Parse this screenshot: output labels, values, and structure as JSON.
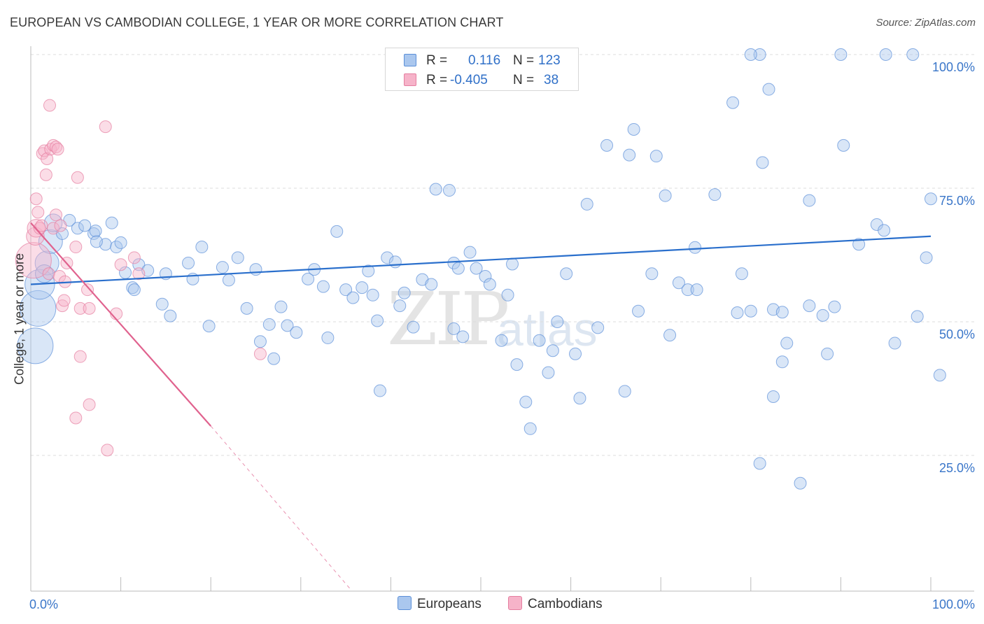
{
  "title": "EUROPEAN VS CAMBODIAN COLLEGE, 1 YEAR OR MORE CORRELATION CHART",
  "source": "Source: ZipAtlas.com",
  "watermark": {
    "zip": "ZIP",
    "atlas": "atlas"
  },
  "colors": {
    "european_fill": "#aac7ee",
    "european_stroke": "#5b8fd8",
    "european_line": "#2a6fcc",
    "cambodian_fill": "#f6b3c9",
    "cambodian_stroke": "#e57ea0",
    "cambodian_line": "#e0628e",
    "grid": "#dddddd",
    "axis_text": "#3a76c9"
  },
  "legend": {
    "rows": [
      {
        "r_label": "R =",
        "r_value": "0.116",
        "n_label": "N =",
        "n_value": "123"
      },
      {
        "r_label": "R =",
        "r_value": "-0.405",
        "n_label": "N =",
        "n_value": "38"
      }
    ],
    "series_names": [
      "Europeans",
      "Cambodians"
    ]
  },
  "chart_data": {
    "type": "scatter",
    "title": "EUROPEAN VS CAMBODIAN COLLEGE, 1 YEAR OR MORE CORRELATION CHART",
    "xlabel": "",
    "ylabel": "College, 1 year or more",
    "xlim": [
      0,
      100
    ],
    "ylim": [
      0,
      100
    ],
    "x_tick_labels": [
      "0.0%",
      "100.0%"
    ],
    "y_tick_labels": [
      "25.0%",
      "50.0%",
      "75.0%",
      "100.0%"
    ],
    "y_tick_values": [
      25,
      50,
      75,
      100
    ],
    "grid": true,
    "series": [
      {
        "name": "Europeans",
        "r": 0.116,
        "n": 123,
        "trend": {
          "x": [
            0,
            100
          ],
          "y": [
            57.0,
            66.0
          ],
          "dashed_extension": false
        },
        "points": [
          [
            0.5,
            45.5,
            3
          ],
          [
            0.8,
            52.5,
            3
          ],
          [
            1.0,
            57.0,
            2.5
          ],
          [
            1.8,
            61.0,
            2
          ],
          [
            2.2,
            65.0,
            2
          ],
          [
            1.5,
            59.0,
            1.5
          ],
          [
            2.5,
            68.5,
            1.5
          ],
          [
            3.5,
            66.5,
            1
          ],
          [
            4.3,
            69.0,
            1
          ],
          [
            5.2,
            67.5,
            1
          ],
          [
            6.0,
            68.0,
            1
          ],
          [
            7.0,
            66.5,
            1
          ],
          [
            7.2,
            67.0,
            1
          ],
          [
            8.3,
            64.5,
            1
          ],
          [
            9.0,
            68.5,
            1
          ],
          [
            9.5,
            64.0,
            1
          ],
          [
            7.3,
            65.0,
            1
          ],
          [
            10.0,
            64.8,
            1
          ],
          [
            10.5,
            59.2,
            1
          ],
          [
            11.3,
            56.4,
            1
          ],
          [
            11.5,
            56.0,
            1
          ],
          [
            12.0,
            60.7,
            1
          ],
          [
            13.0,
            59.6,
            1
          ],
          [
            14.6,
            53.3,
            1
          ],
          [
            15.0,
            59.0,
            1
          ],
          [
            15.5,
            51.1,
            1
          ],
          [
            17.5,
            61.0,
            1
          ],
          [
            18.0,
            58.0,
            1
          ],
          [
            19.0,
            64.0,
            1
          ],
          [
            19.8,
            49.2,
            1
          ],
          [
            21.3,
            60.2,
            1
          ],
          [
            22.0,
            57.8,
            1
          ],
          [
            23.0,
            62.0,
            1
          ],
          [
            24.0,
            52.5,
            1
          ],
          [
            25.0,
            59.8,
            1
          ],
          [
            25.5,
            46.3,
            1
          ],
          [
            26.5,
            49.5,
            1
          ],
          [
            27.0,
            43.1,
            1
          ],
          [
            27.8,
            52.8,
            1
          ],
          [
            28.5,
            49.3,
            1
          ],
          [
            29.5,
            48.0,
            1
          ],
          [
            30.8,
            58.0,
            1
          ],
          [
            31.5,
            59.8,
            1
          ],
          [
            32.5,
            56.6,
            1
          ],
          [
            33.0,
            47.0,
            1
          ],
          [
            34.0,
            66.9,
            1
          ],
          [
            35.0,
            56.0,
            1
          ],
          [
            35.8,
            54.5,
            1
          ],
          [
            36.8,
            56.4,
            1
          ],
          [
            37.5,
            59.5,
            1
          ],
          [
            38.0,
            55.0,
            1
          ],
          [
            38.5,
            50.2,
            1
          ],
          [
            38.8,
            37.1,
            1
          ],
          [
            39.6,
            62.0,
            1
          ],
          [
            40.5,
            61.2,
            1
          ],
          [
            41.0,
            53.0,
            1
          ],
          [
            41.5,
            55.4,
            1
          ],
          [
            42.5,
            49.0,
            1
          ],
          [
            43.5,
            57.9,
            1
          ],
          [
            44.5,
            57.0,
            1
          ],
          [
            45.0,
            74.8,
            1
          ],
          [
            46.5,
            74.6,
            1
          ],
          [
            47.0,
            61.0,
            1
          ],
          [
            47.5,
            60.0,
            1
          ],
          [
            47.0,
            48.7,
            1
          ],
          [
            48.0,
            47.2,
            1
          ],
          [
            48.8,
            63.0,
            1
          ],
          [
            49.5,
            60.0,
            1
          ],
          [
            50.5,
            58.5,
            1
          ],
          [
            51.0,
            57.0,
            1
          ],
          [
            52.3,
            46.5,
            1
          ],
          [
            53.0,
            55.0,
            1
          ],
          [
            53.5,
            60.8,
            1
          ],
          [
            54.0,
            42.0,
            1
          ],
          [
            55.0,
            35.0,
            1
          ],
          [
            55.5,
            30.0,
            1
          ],
          [
            56.5,
            46.5,
            1
          ],
          [
            57.5,
            40.5,
            1
          ],
          [
            58.0,
            44.6,
            1
          ],
          [
            58.5,
            50.0,
            1
          ],
          [
            59.5,
            59.0,
            1
          ],
          [
            60.5,
            44.0,
            1
          ],
          [
            61.0,
            35.7,
            1
          ],
          [
            61.8,
            72.0,
            1
          ],
          [
            63.0,
            48.9,
            1
          ],
          [
            64.0,
            83.0,
            1
          ],
          [
            66.0,
            37.0,
            1
          ],
          [
            66.5,
            81.2,
            1
          ],
          [
            67.0,
            86.0,
            1
          ],
          [
            67.5,
            52.0,
            1
          ],
          [
            69.0,
            59.0,
            1
          ],
          [
            69.5,
            81.0,
            1
          ],
          [
            70.5,
            73.6,
            1
          ],
          [
            71.0,
            47.5,
            1
          ],
          [
            72.0,
            57.3,
            1
          ],
          [
            73.0,
            56.0,
            1
          ],
          [
            73.8,
            63.9,
            1
          ],
          [
            74.0,
            56.0,
            1
          ],
          [
            76.0,
            73.8,
            1
          ],
          [
            78.0,
            91.0,
            1
          ],
          [
            78.5,
            51.7,
            1
          ],
          [
            79.0,
            59.0,
            1
          ],
          [
            80.0,
            52.0,
            1
          ],
          [
            81.0,
            23.5,
            1
          ],
          [
            81.3,
            79.8,
            1
          ],
          [
            82.0,
            93.5,
            1
          ],
          [
            82.5,
            52.3,
            1
          ],
          [
            83.5,
            51.8,
            1
          ],
          [
            84.0,
            46.0,
            1
          ],
          [
            85.5,
            19.8,
            1
          ],
          [
            86.5,
            53.0,
            1
          ],
          [
            88.0,
            51.2,
            1
          ],
          [
            89.3,
            52.8,
            1
          ],
          [
            90.3,
            83.0,
            1
          ],
          [
            92.0,
            64.5,
            1
          ],
          [
            94.0,
            68.2,
            1
          ],
          [
            94.8,
            67.1,
            1
          ],
          [
            96.0,
            46.0,
            1
          ],
          [
            99.5,
            62.0,
            1
          ],
          [
            100.0,
            73.0,
            1
          ],
          [
            98.0,
            100.0,
            1
          ],
          [
            95.0,
            100.0,
            1
          ],
          [
            90.0,
            100.0,
            1
          ],
          [
            81.0,
            100.0,
            1
          ],
          [
            80.0,
            100.0,
            1
          ],
          [
            82.5,
            36.0,
            1
          ],
          [
            83.5,
            42.5,
            1
          ],
          [
            88.5,
            44.0,
            1
          ],
          [
            86.5,
            72.7,
            1
          ],
          [
            98.5,
            51.0,
            1
          ],
          [
            101.0,
            40.0,
            1
          ]
        ]
      },
      {
        "name": "Cambodians",
        "r": -0.405,
        "n": 38,
        "trend": {
          "x": [
            0,
            20.0
          ],
          "y": [
            68.5,
            30.5
          ],
          "dashed_extension": {
            "x": [
              20.0,
              35.5
            ],
            "y": [
              30.5,
              0
            ]
          }
        },
        "points": [
          [
            0.3,
            61.5,
            3
          ],
          [
            0.5,
            66.0,
            1.5
          ],
          [
            0.6,
            67.5,
            1.5
          ],
          [
            0.8,
            70.5,
            1
          ],
          [
            0.6,
            73.0,
            1
          ],
          [
            1.0,
            67.5,
            1
          ],
          [
            1.2,
            68.0,
            1
          ],
          [
            1.3,
            81.5,
            1
          ],
          [
            1.5,
            82.0,
            1
          ],
          [
            1.7,
            77.5,
            1
          ],
          [
            1.8,
            80.5,
            1
          ],
          [
            2.1,
            90.5,
            1
          ],
          [
            2.2,
            82.3,
            1
          ],
          [
            2.5,
            83.0,
            1
          ],
          [
            2.8,
            82.7,
            1
          ],
          [
            3.0,
            82.3,
            1
          ],
          [
            2.5,
            67.5,
            1
          ],
          [
            2.8,
            70.0,
            1
          ],
          [
            3.3,
            68.0,
            1
          ],
          [
            3.5,
            53.0,
            1
          ],
          [
            2.0,
            59.0,
            1
          ],
          [
            3.2,
            58.5,
            1
          ],
          [
            3.7,
            54.0,
            1
          ],
          [
            3.8,
            57.5,
            1
          ],
          [
            4.0,
            61.0,
            1
          ],
          [
            5.0,
            64.0,
            1
          ],
          [
            5.2,
            77.0,
            1
          ],
          [
            5.5,
            52.5,
            1
          ],
          [
            6.5,
            52.5,
            1
          ],
          [
            6.3,
            56.0,
            1
          ],
          [
            8.3,
            86.5,
            1
          ],
          [
            9.5,
            51.5,
            1
          ],
          [
            10.0,
            60.7,
            1
          ],
          [
            11.5,
            62.0,
            1
          ],
          [
            12.0,
            59.0,
            1
          ],
          [
            5.5,
            43.5,
            1
          ],
          [
            6.5,
            34.5,
            1
          ],
          [
            8.5,
            26.0,
            1
          ],
          [
            5.0,
            32.0,
            1
          ],
          [
            25.5,
            44.0,
            1
          ]
        ]
      }
    ]
  }
}
